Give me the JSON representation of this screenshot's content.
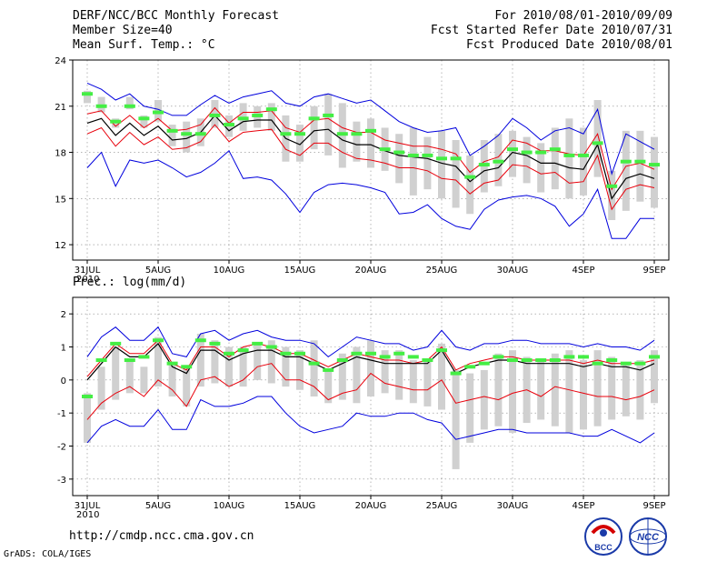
{
  "header": {
    "title": "DERF/NCC/BCC Monthly Forecast",
    "member_size": "Member Size=40",
    "variable_top": "Mean Surf. Temp.: °C",
    "period": "For 2010/08/01-2010/09/09",
    "started": "Fcst Started Refer Date 2010/07/31",
    "produced": "Fcst Produced Date 2010/08/01"
  },
  "variable_bottom": "Prec.: log(mm/d)",
  "footer": {
    "url": "http://cmdp.ncc.cma.gov.cn",
    "grads": "GrADS: COLA/IGES",
    "logo_left": "BCC",
    "logo_right": "NCC"
  },
  "colors": {
    "mean": "#000000",
    "band": "#e8000b",
    "extreme": "#0000dd",
    "obs": "#44ee44",
    "box": "#d0d0d0"
  },
  "chart_data": [
    {
      "type": "line",
      "name": "temperature",
      "ylim": [
        11,
        24
      ],
      "yticks": [
        12,
        15,
        18,
        21,
        24
      ],
      "xlim": [
        0,
        40
      ],
      "xtick_positions": [
        0,
        5,
        10,
        15,
        20,
        25,
        30,
        35,
        40
      ],
      "xtick_labels": [
        "31JUL",
        "5AUG",
        "10AUG",
        "15AUG",
        "20AUG",
        "25AUG",
        "30AUG",
        "4SEP",
        "9SEP"
      ],
      "xtick_year": "2010",
      "series": [
        {
          "name": "max",
          "values": [
            22.5,
            22.1,
            21.4,
            21.8,
            21.0,
            20.8,
            20.4,
            20.4,
            21.1,
            21.7,
            21.2,
            21.6,
            21.8,
            22.0,
            21.2,
            21.0,
            21.6,
            21.8,
            21.5,
            21.2,
            21.4,
            20.7,
            20.0,
            19.6,
            19.3,
            19.4,
            19.6,
            17.8,
            18.4,
            19.1,
            20.2,
            19.6,
            18.8,
            19.4,
            19.6,
            19.2,
            20.8,
            16.6,
            19.2,
            18.7,
            18.2
          ]
        },
        {
          "name": "upper",
          "values": [
            20.5,
            20.7,
            19.7,
            20.4,
            19.6,
            20.2,
            19.4,
            19.5,
            19.8,
            20.9,
            19.9,
            20.6,
            20.6,
            20.7,
            19.6,
            19.3,
            20.1,
            20.2,
            19.6,
            19.3,
            19.3,
            18.8,
            18.6,
            18.4,
            18.4,
            18.2,
            17.9,
            16.7,
            17.4,
            17.7,
            18.8,
            18.6,
            18.1,
            18.1,
            17.9,
            17.8,
            19.2,
            15.6,
            17.1,
            17.3,
            16.9
          ]
        },
        {
          "name": "mean",
          "values": [
            19.9,
            20.2,
            19.1,
            19.9,
            19.1,
            19.7,
            18.8,
            18.9,
            19.3,
            20.4,
            19.4,
            20.0,
            20.1,
            20.1,
            18.9,
            18.5,
            19.4,
            19.5,
            18.8,
            18.5,
            18.5,
            18.1,
            17.8,
            17.7,
            17.6,
            17.3,
            17.1,
            16.1,
            16.8,
            17.0,
            18.0,
            17.8,
            17.3,
            17.3,
            17.0,
            16.9,
            18.5,
            15.0,
            16.3,
            16.6,
            16.3
          ]
        },
        {
          "name": "lower",
          "values": [
            19.2,
            19.6,
            18.4,
            19.3,
            18.5,
            19.0,
            18.2,
            18.3,
            18.7,
            19.8,
            18.7,
            19.3,
            19.4,
            19.5,
            18.2,
            17.8,
            18.6,
            18.6,
            18.0,
            17.6,
            17.5,
            17.3,
            17.0,
            17.0,
            16.8,
            16.3,
            16.2,
            15.3,
            16.0,
            16.2,
            17.2,
            17.1,
            16.6,
            16.7,
            16.0,
            16.1,
            17.8,
            14.3,
            15.6,
            15.9,
            15.7
          ]
        },
        {
          "name": "min",
          "values": [
            17.0,
            18.0,
            15.8,
            17.5,
            17.3,
            17.5,
            17.0,
            16.4,
            16.7,
            17.3,
            18.1,
            16.3,
            16.4,
            16.2,
            15.3,
            14.1,
            15.4,
            15.9,
            16.0,
            15.9,
            15.7,
            15.4,
            14.0,
            14.1,
            14.6,
            13.7,
            13.2,
            13.0,
            14.3,
            14.9,
            15.1,
            15.2,
            15.0,
            14.5,
            13.2,
            14.0,
            15.6,
            12.4,
            12.4,
            13.7,
            13.7
          ]
        },
        {
          "name": "obs",
          "values": [
            21.8,
            21.0,
            20.0,
            21.0,
            20.2,
            20.6,
            19.4,
            19.2,
            19.2,
            20.4,
            19.8,
            20.2,
            20.4,
            20.8,
            19.2,
            19.2,
            20.2,
            20.4,
            19.2,
            19.2,
            19.4,
            18.2,
            18.0,
            17.8,
            17.8,
            17.6,
            17.6,
            16.4,
            17.2,
            17.4,
            18.2,
            18.0,
            18.0,
            18.2,
            17.8,
            17.8,
            18.6,
            15.8,
            17.4,
            17.4,
            17.2
          ]
        },
        {
          "name": "box_top",
          "values": [
            22.0,
            21.6,
            20.2,
            21.6,
            20.4,
            21.4,
            19.8,
            20.0,
            20.2,
            21.4,
            20.4,
            21.2,
            21.0,
            21.2,
            20.4,
            19.8,
            21.0,
            21.8,
            21.2,
            20.0,
            20.2,
            19.6,
            19.2,
            19.6,
            19.0,
            19.4,
            18.8,
            17.8,
            18.8,
            19.2,
            19.4,
            19.0,
            18.6,
            19.6,
            20.2,
            19.6,
            21.4,
            16.8,
            19.4,
            19.4,
            19.0
          ]
        },
        {
          "name": "box_bottom",
          "values": [
            21.2,
            20.6,
            19.6,
            20.8,
            19.6,
            20.0,
            18.4,
            18.0,
            18.4,
            19.6,
            19.0,
            19.4,
            19.6,
            19.4,
            17.4,
            17.4,
            18.2,
            17.8,
            17.0,
            17.4,
            17.0,
            16.8,
            16.0,
            15.2,
            15.6,
            15.0,
            14.4,
            14.0,
            15.4,
            15.8,
            16.4,
            16.0,
            15.4,
            15.6,
            15.0,
            15.2,
            16.4,
            13.6,
            14.2,
            14.8,
            14.4
          ]
        }
      ]
    },
    {
      "type": "line",
      "name": "precipitation",
      "ylim": [
        -3.5,
        2.5
      ],
      "yticks": [
        -3,
        -2,
        -1,
        0,
        1,
        2
      ],
      "xlim": [
        0,
        40
      ],
      "xtick_positions": [
        0,
        5,
        10,
        15,
        20,
        25,
        30,
        35,
        40
      ],
      "xtick_labels": [
        "31JUL",
        "5AUG",
        "10AUG",
        "15AUG",
        "20AUG",
        "25AUG",
        "30AUG",
        "4SEP",
        "9SEP"
      ],
      "xtick_year": "2010",
      "series": [
        {
          "name": "max",
          "values": [
            0.7,
            1.3,
            1.6,
            1.2,
            1.2,
            1.6,
            0.8,
            0.7,
            1.4,
            1.5,
            1.2,
            1.4,
            1.5,
            1.3,
            1.2,
            1.2,
            1.1,
            0.7,
            1.0,
            1.3,
            1.2,
            1.1,
            1.1,
            0.9,
            1.0,
            1.5,
            1.0,
            0.9,
            1.1,
            1.1,
            1.2,
            1.2,
            1.1,
            1.1,
            1.1,
            1.0,
            1.1,
            1.0,
            1.0,
            0.9,
            1.2
          ]
        },
        {
          "name": "upper",
          "values": [
            0.1,
            0.6,
            1.1,
            0.8,
            0.8,
            1.2,
            0.5,
            0.3,
            1.0,
            1.0,
            0.7,
            1.0,
            1.1,
            1.0,
            0.8,
            0.8,
            0.6,
            0.4,
            0.6,
            0.8,
            0.7,
            0.6,
            0.6,
            0.5,
            0.6,
            1.0,
            0.3,
            0.5,
            0.6,
            0.7,
            0.7,
            0.6,
            0.6,
            0.6,
            0.6,
            0.5,
            0.6,
            0.5,
            0.5,
            0.5,
            0.6
          ]
        },
        {
          "name": "mean",
          "values": [
            0.0,
            0.5,
            1.0,
            0.7,
            0.7,
            1.1,
            0.4,
            0.2,
            0.9,
            0.9,
            0.6,
            0.8,
            0.9,
            0.9,
            0.7,
            0.7,
            0.5,
            0.3,
            0.5,
            0.7,
            0.6,
            0.5,
            0.5,
            0.5,
            0.5,
            0.9,
            0.2,
            0.4,
            0.5,
            0.6,
            0.6,
            0.5,
            0.5,
            0.5,
            0.5,
            0.4,
            0.5,
            0.4,
            0.4,
            0.3,
            0.5
          ]
        },
        {
          "name": "lower",
          "values": [
            -1.2,
            -0.7,
            -0.4,
            -0.2,
            -0.5,
            0.0,
            -0.3,
            -0.8,
            0.0,
            0.1,
            -0.2,
            0.0,
            0.4,
            0.5,
            0.0,
            0.0,
            -0.2,
            -0.6,
            -0.4,
            -0.3,
            0.2,
            -0.1,
            -0.2,
            -0.3,
            -0.3,
            0.0,
            -0.7,
            -0.6,
            -0.5,
            -0.6,
            -0.4,
            -0.3,
            -0.5,
            -0.2,
            -0.3,
            -0.4,
            -0.5,
            -0.5,
            -0.6,
            -0.5,
            -0.3
          ]
        },
        {
          "name": "min",
          "values": [
            -1.9,
            -1.4,
            -1.2,
            -1.4,
            -1.4,
            -0.9,
            -1.5,
            -1.5,
            -0.6,
            -0.8,
            -0.8,
            -0.7,
            -0.5,
            -0.5,
            -1.0,
            -1.4,
            -1.6,
            -1.5,
            -1.4,
            -1.0,
            -1.1,
            -1.1,
            -1.0,
            -1.0,
            -1.2,
            -1.3,
            -1.8,
            -1.7,
            -1.6,
            -1.5,
            -1.5,
            -1.6,
            -1.6,
            -1.6,
            -1.6,
            -1.7,
            -1.7,
            -1.5,
            -1.7,
            -1.9,
            -1.6
          ]
        },
        {
          "name": "obs",
          "values": [
            -0.5,
            0.6,
            1.1,
            0.6,
            0.7,
            1.2,
            0.5,
            0.4,
            1.2,
            1.1,
            0.8,
            0.9,
            1.1,
            1.0,
            0.8,
            0.8,
            0.5,
            0.3,
            0.6,
            0.8,
            0.8,
            0.7,
            0.8,
            0.7,
            0.6,
            0.9,
            0.2,
            0.4,
            0.5,
            0.7,
            0.6,
            0.6,
            0.6,
            0.6,
            0.7,
            0.7,
            0.5,
            0.6,
            0.5,
            0.5,
            0.7
          ]
        },
        {
          "name": "box_top",
          "values": [
            -0.4,
            0.4,
            1.0,
            0.6,
            0.4,
            1.3,
            0.5,
            0.4,
            1.4,
            1.2,
            1.0,
            1.0,
            1.1,
            1.2,
            1.0,
            0.9,
            1.2,
            0.3,
            0.8,
            1.0,
            1.2,
            0.9,
            0.9,
            0.6,
            0.6,
            1.1,
            0.3,
            0.2,
            0.3,
            0.8,
            0.9,
            0.7,
            0.6,
            0.8,
            0.9,
            0.6,
            0.9,
            0.7,
            0.5,
            0.6,
            0.9
          ]
        },
        {
          "name": "box_bottom",
          "values": [
            -1.9,
            -0.9,
            -0.6,
            -0.4,
            -0.4,
            -0.2,
            -0.5,
            -0.8,
            -0.2,
            -0.1,
            -0.2,
            -0.2,
            0.0,
            -0.1,
            -0.2,
            -0.3,
            -0.5,
            -0.7,
            -0.6,
            -0.7,
            -0.5,
            -0.4,
            -0.6,
            -0.7,
            -0.8,
            -0.9,
            -2.7,
            -1.9,
            -1.5,
            -1.4,
            -1.6,
            -1.3,
            -1.2,
            -1.4,
            -1.6,
            -1.5,
            -1.4,
            -1.2,
            -1.1,
            -1.2,
            -0.7
          ]
        }
      ]
    }
  ]
}
